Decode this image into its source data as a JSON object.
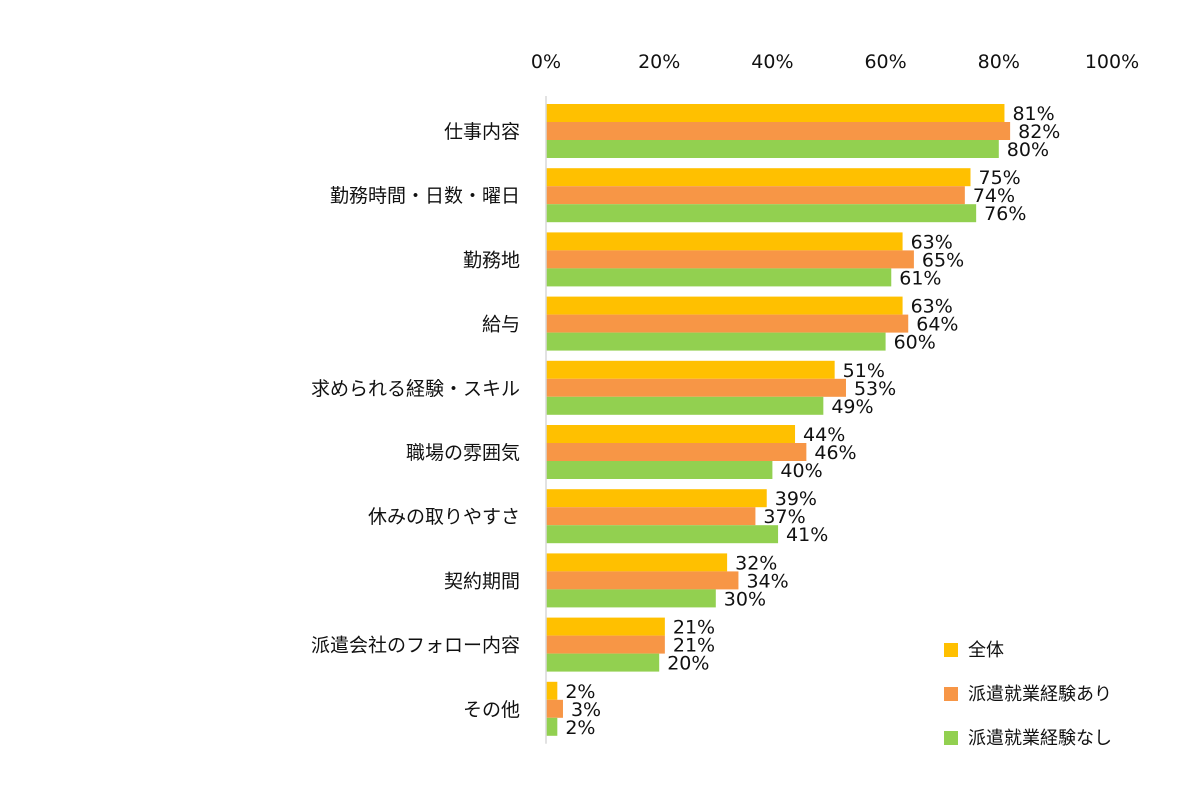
{
  "chart_data": {
    "type": "bar",
    "orientation": "horizontal",
    "categories": [
      "仕事内容",
      "勤務時間・日数・曜日",
      "勤務地",
      "給与",
      "求められる経験・スキル",
      "職場の雰囲気",
      "休みの取りやすさ",
      "契約期間",
      "派遣会社のフォロー内容",
      "その他"
    ],
    "series": [
      {
        "name": "全体",
        "color": "#FFC000",
        "values": [
          81,
          75,
          63,
          63,
          51,
          44,
          39,
          32,
          21,
          2
        ]
      },
      {
        "name": "派遣就業経験あり",
        "color": "#F79646",
        "values": [
          82,
          74,
          65,
          64,
          53,
          46,
          37,
          34,
          21,
          3
        ]
      },
      {
        "name": "派遣就業経験なし",
        "color": "#92D050",
        "values": [
          80,
          76,
          61,
          60,
          49,
          40,
          41,
          30,
          20,
          2
        ]
      }
    ],
    "value_suffix": "%",
    "xlim": [
      0,
      100
    ],
    "x_ticks": [
      0,
      20,
      40,
      60,
      80,
      100
    ],
    "x_tick_labels": [
      "0%",
      "20%",
      "40%",
      "60%",
      "80%",
      "100%"
    ],
    "x_axis_position": "top",
    "grid": false,
    "legend_position": "bottom-right",
    "title": "",
    "xlabel": "",
    "ylabel": ""
  }
}
